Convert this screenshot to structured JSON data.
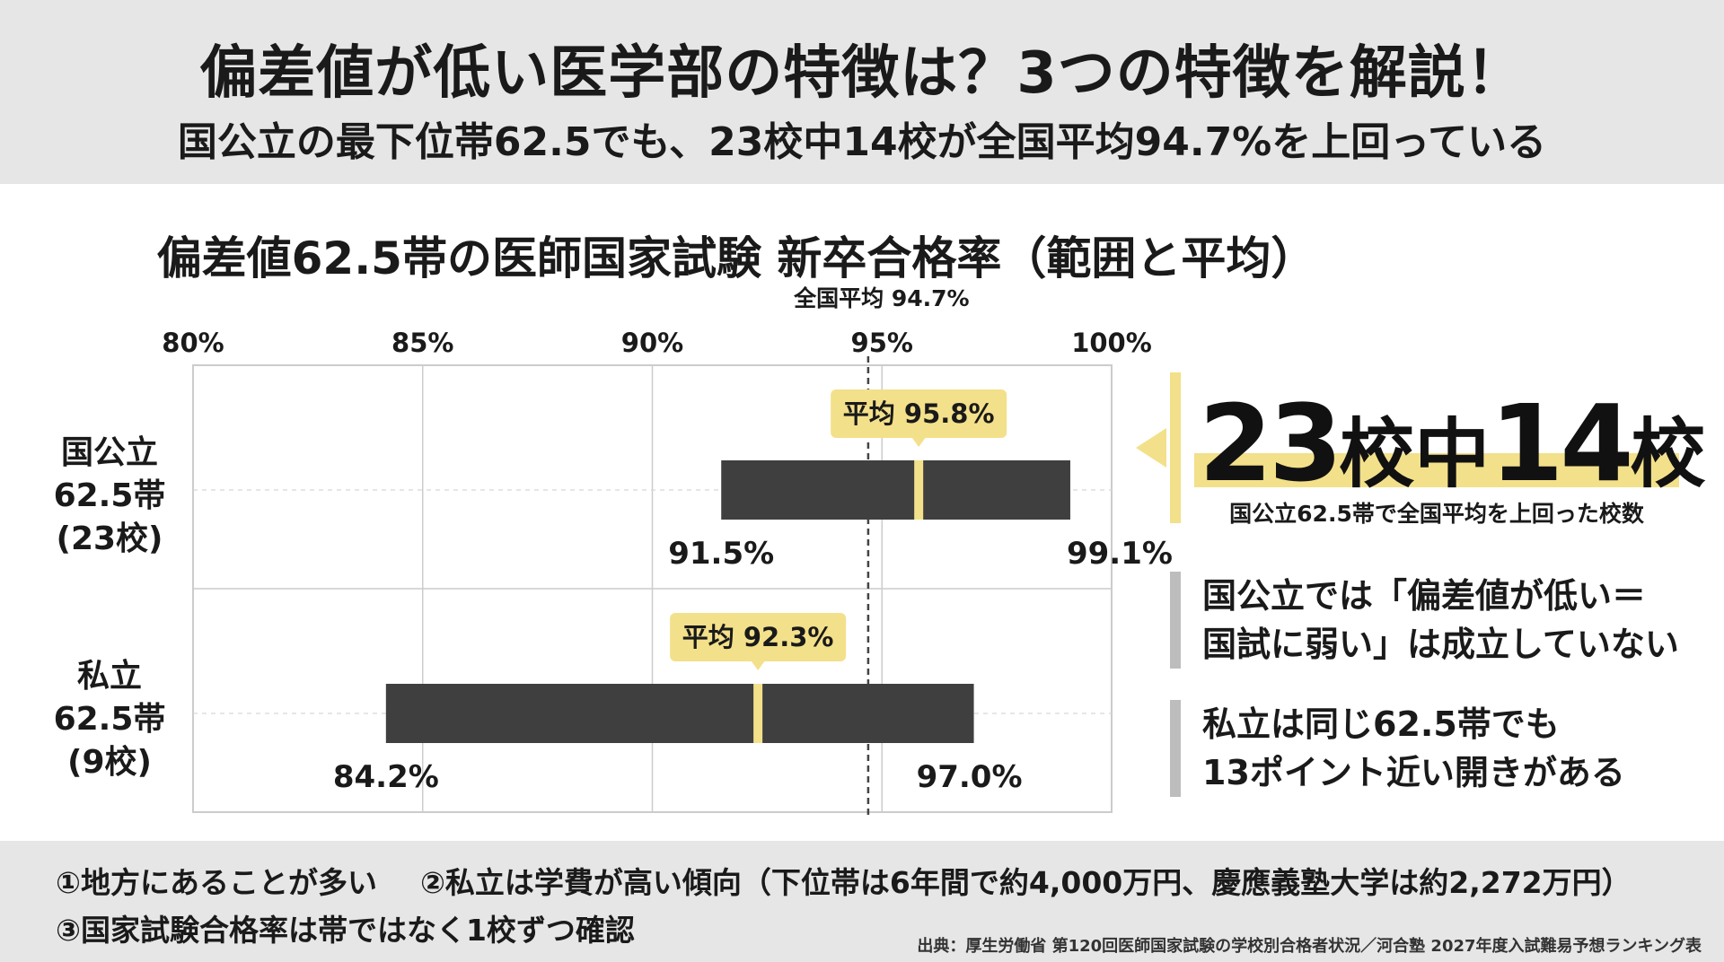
{
  "header": {
    "title": "偏差値が低い医学部の特徴は？3つの特徴を解説！",
    "subtitle": "国公立の最下位帯62.5でも、23校中14校が全国平均94.7%を上回っている"
  },
  "chart_data": {
    "type": "range-bar",
    "title": "偏差値62.5帯の医師国家試験 新卒合格率（範囲と平均）",
    "x_ticks": [
      "80%",
      "85%",
      "90%",
      "95%",
      "100%"
    ],
    "xlim": [
      80,
      100
    ],
    "grid": true,
    "reference_line": {
      "label": "全国平均 94.7%",
      "value": 94.7
    },
    "series": [
      {
        "label_lines": [
          "国公立",
          "62.5帯",
          "(23校)"
        ],
        "min": 91.5,
        "max": 99.1,
        "mean": 95.8,
        "min_label": "91.5%",
        "max_label": "99.1%",
        "mean_label": "平均 95.8%"
      },
      {
        "label_lines": [
          "私立",
          "62.5帯",
          "(9校)"
        ],
        "min": 84.2,
        "max": 97.0,
        "mean": 92.3,
        "min_label": "84.2%",
        "max_label": "97.0%",
        "mean_label": "平均 92.3%"
      }
    ],
    "colors": {
      "bar": "#3f3f3f",
      "mean_marker": "#f3e08a",
      "badge": "#f3e08a",
      "grid": "#cccccc",
      "reference": "#444444"
    }
  },
  "callout": {
    "num1": "23",
    "word1": "校中",
    "num2": "14",
    "word2": "校",
    "caption": "国公立62.5帯で全国平均を上回った校数"
  },
  "notes": [
    {
      "line1": "国公立では「偏差値が低い＝",
      "line2": "国試に弱い」は成立していない"
    },
    {
      "line1": "私立は同じ62.5帯でも",
      "line2": "13ポイント近い開きがある"
    }
  ],
  "footer": {
    "item1": "①地方にあることが多い",
    "item2": "②私立は学費が高い傾向（下位帯は6年間で約4,000万円、慶應義塾大学は約2,272万円）",
    "item3": "③国家試験合格率は帯ではなく1校ずつ確認",
    "source": "出典：厚生労働省 第120回医師国家試験の学校別合格者状況／河合塾 2027年度入試難易予想ランキング表"
  }
}
